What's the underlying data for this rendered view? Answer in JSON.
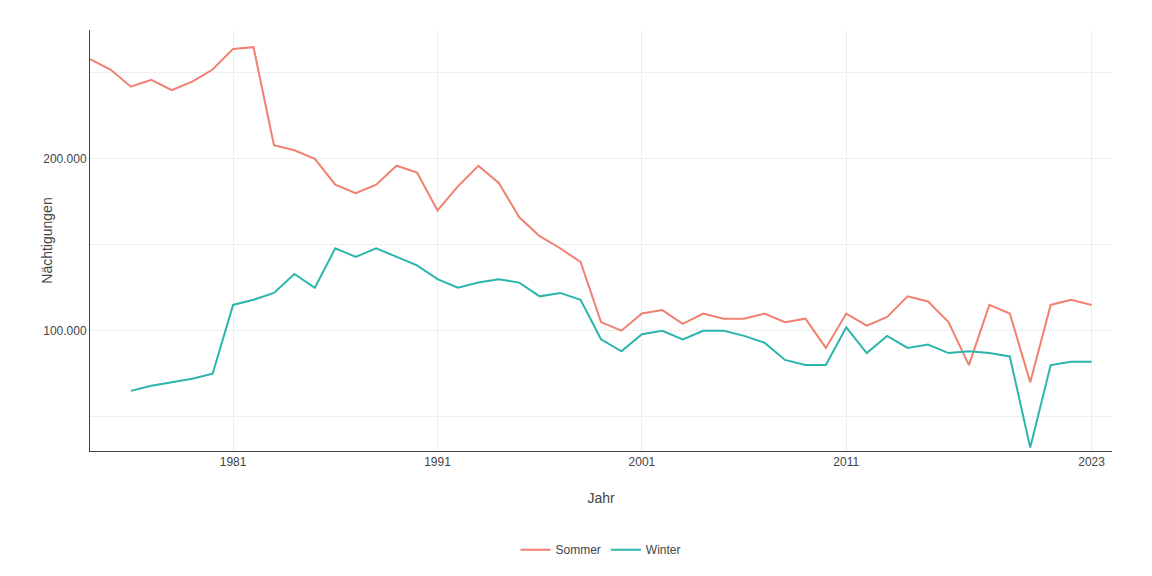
{
  "chart_data": {
    "type": "line",
    "xlabel": "Jahr",
    "ylabel": "Nächtigungen",
    "x": [
      1974,
      1975,
      1976,
      1977,
      1978,
      1979,
      1980,
      1981,
      1982,
      1983,
      1984,
      1985,
      1986,
      1987,
      1988,
      1989,
      1990,
      1991,
      1992,
      1993,
      1994,
      1995,
      1996,
      1997,
      1998,
      1999,
      2000,
      2001,
      2002,
      2003,
      2004,
      2005,
      2006,
      2007,
      2008,
      2009,
      2010,
      2011,
      2012,
      2013,
      2014,
      2015,
      2016,
      2017,
      2018,
      2019,
      2020,
      2021,
      2022,
      2023
    ],
    "series": [
      {
        "name": "Sommer",
        "color": "#F08070",
        "values": [
          258000,
          252000,
          242000,
          246000,
          240000,
          245000,
          252000,
          264000,
          265000,
          208000,
          205000,
          200000,
          185000,
          180000,
          185000,
          196000,
          192000,
          170000,
          184000,
          196000,
          186000,
          166000,
          155000,
          148000,
          140000,
          105000,
          100000,
          110000,
          112000,
          104000,
          110000,
          107000,
          107000,
          110000,
          105000,
          107000,
          90000,
          110000,
          103000,
          108000,
          120000,
          117000,
          105000,
          80000,
          115000,
          110000,
          70000,
          115000,
          118000,
          115000
        ]
      },
      {
        "name": "Winter",
        "color": "#2BB5AD",
        "values": [
          null,
          null,
          65000,
          68000,
          70000,
          72000,
          75000,
          115000,
          118000,
          122000,
          133000,
          125000,
          148000,
          143000,
          148000,
          143000,
          138000,
          130000,
          125000,
          128000,
          130000,
          128000,
          120000,
          122000,
          118000,
          95000,
          88000,
          98000,
          100000,
          95000,
          100000,
          100000,
          97000,
          93000,
          83000,
          80000,
          80000,
          102000,
          87000,
          97000,
          90000,
          92000,
          87000,
          88000,
          87000,
          85000,
          32000,
          80000,
          82000,
          82000
        ]
      }
    ],
    "xlim": [
      1974,
      2024
    ],
    "xticks": [
      1981,
      1991,
      2001,
      2011,
      2023
    ],
    "ylim": [
      30000,
      275000
    ],
    "yticks": [
      {
        "value": 50000,
        "label": null
      },
      {
        "value": 100000,
        "label": "100.000"
      },
      {
        "value": 150000,
        "label": null
      },
      {
        "value": 200000,
        "label": "200.000"
      },
      {
        "value": 250000,
        "label": null
      }
    ],
    "grid": true,
    "legend": "bottom"
  }
}
